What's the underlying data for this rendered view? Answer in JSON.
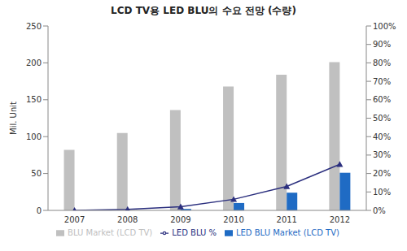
{
  "chart_data": {
    "type": "bar",
    "title": "LCD TV용 LED BLU의 수요 전망 (수량)",
    "y_label": "Mil. Unit",
    "categories": [
      "2007",
      "2008",
      "2009",
      "2010",
      "2011",
      "2012"
    ],
    "series": [
      {
        "name": "BLU Market (LCD TV)",
        "type": "bar",
        "color": "#c0c0c0",
        "values": [
          82,
          105,
          136,
          168,
          184,
          201
        ]
      },
      {
        "name": "LED BLU Market (LCD TV)",
        "type": "bar",
        "color": "#1f6bc4",
        "values": [
          0,
          0,
          2,
          10,
          24,
          51
        ]
      },
      {
        "name": "LED BLU %",
        "type": "line",
        "axis": "y2",
        "color": "#2b2f7e",
        "marker": "triangle",
        "values": [
          0,
          0.5,
          2,
          6,
          13,
          25
        ]
      }
    ],
    "ylim": [
      0,
      250
    ],
    "yticks": [
      0,
      50,
      100,
      150,
      200,
      250
    ],
    "y2lim": [
      0,
      100
    ],
    "y2ticks": [
      {
        "value": 0,
        "label": "0%"
      },
      {
        "value": 10,
        "label": "10%"
      },
      {
        "value": 20,
        "label": "20%"
      },
      {
        "value": 30,
        "label": "30%"
      },
      {
        "value": 40,
        "label": "40%"
      },
      {
        "value": 50,
        "label": "50%"
      },
      {
        "value": 60,
        "label": "60%"
      },
      {
        "value": 70,
        "label": "70%"
      },
      {
        "value": 80,
        "label": "80%"
      },
      {
        "value": 90,
        "label": "90%"
      },
      {
        "value": 100,
        "label": "100%"
      }
    ],
    "grid": false,
    "legend": "bottom"
  }
}
